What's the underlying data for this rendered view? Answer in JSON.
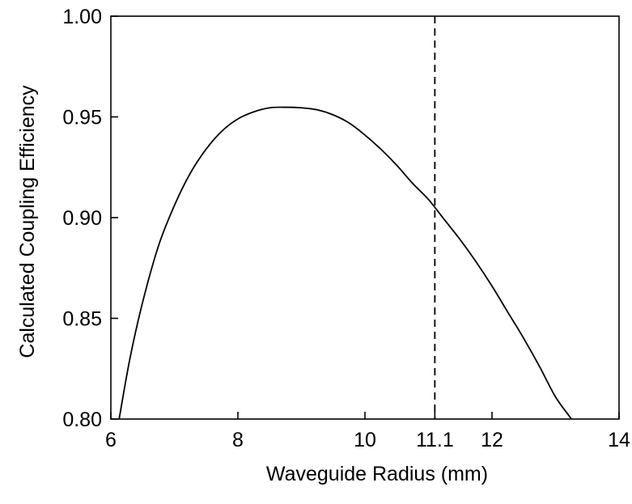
{
  "chart_data": {
    "type": "line",
    "title": "",
    "xlabel": "Waveguide Radius (mm)",
    "ylabel": "Calculated Coupling Efficiency",
    "xlim": [
      6,
      14
    ],
    "ylim": [
      0.8,
      1.0
    ],
    "x_ticks": [
      {
        "value": 6,
        "label": "6"
      },
      {
        "value": 8,
        "label": "8"
      },
      {
        "value": 10,
        "label": "10"
      },
      {
        "value": 11.1,
        "label": "11.1"
      },
      {
        "value": 12,
        "label": "12"
      },
      {
        "value": 14,
        "label": "14"
      }
    ],
    "y_ticks": [
      {
        "value": 0.8,
        "label": "0.80"
      },
      {
        "value": 0.85,
        "label": "0.85"
      },
      {
        "value": 0.9,
        "label": "0.90"
      },
      {
        "value": 0.95,
        "label": "0.95"
      },
      {
        "value": 1.0,
        "label": "1.00"
      }
    ],
    "grid": false,
    "legend": "none",
    "series": [
      {
        "x": [
          6.13,
          6.3,
          6.5,
          6.75,
          7.0,
          7.25,
          7.5,
          7.75,
          8.0,
          8.25,
          8.5,
          8.75,
          9.0,
          9.25,
          9.5,
          9.75,
          10.0,
          10.25,
          10.5,
          10.75,
          11.0,
          11.25,
          11.5,
          11.75,
          12.0,
          12.25,
          12.5,
          12.75,
          13.0,
          13.25,
          13.45
        ],
        "y": [
          0.8,
          0.83,
          0.858,
          0.886,
          0.906,
          0.922,
          0.934,
          0.943,
          0.949,
          0.9525,
          0.9545,
          0.9548,
          0.9545,
          0.9535,
          0.951,
          0.947,
          0.941,
          0.934,
          0.926,
          0.917,
          0.909,
          0.899,
          0.889,
          0.878,
          0.866,
          0.853,
          0.84,
          0.826,
          0.811,
          0.8,
          0.791
        ]
      }
    ],
    "reference_line": {
      "x": 11.1,
      "style": "dashed"
    }
  }
}
